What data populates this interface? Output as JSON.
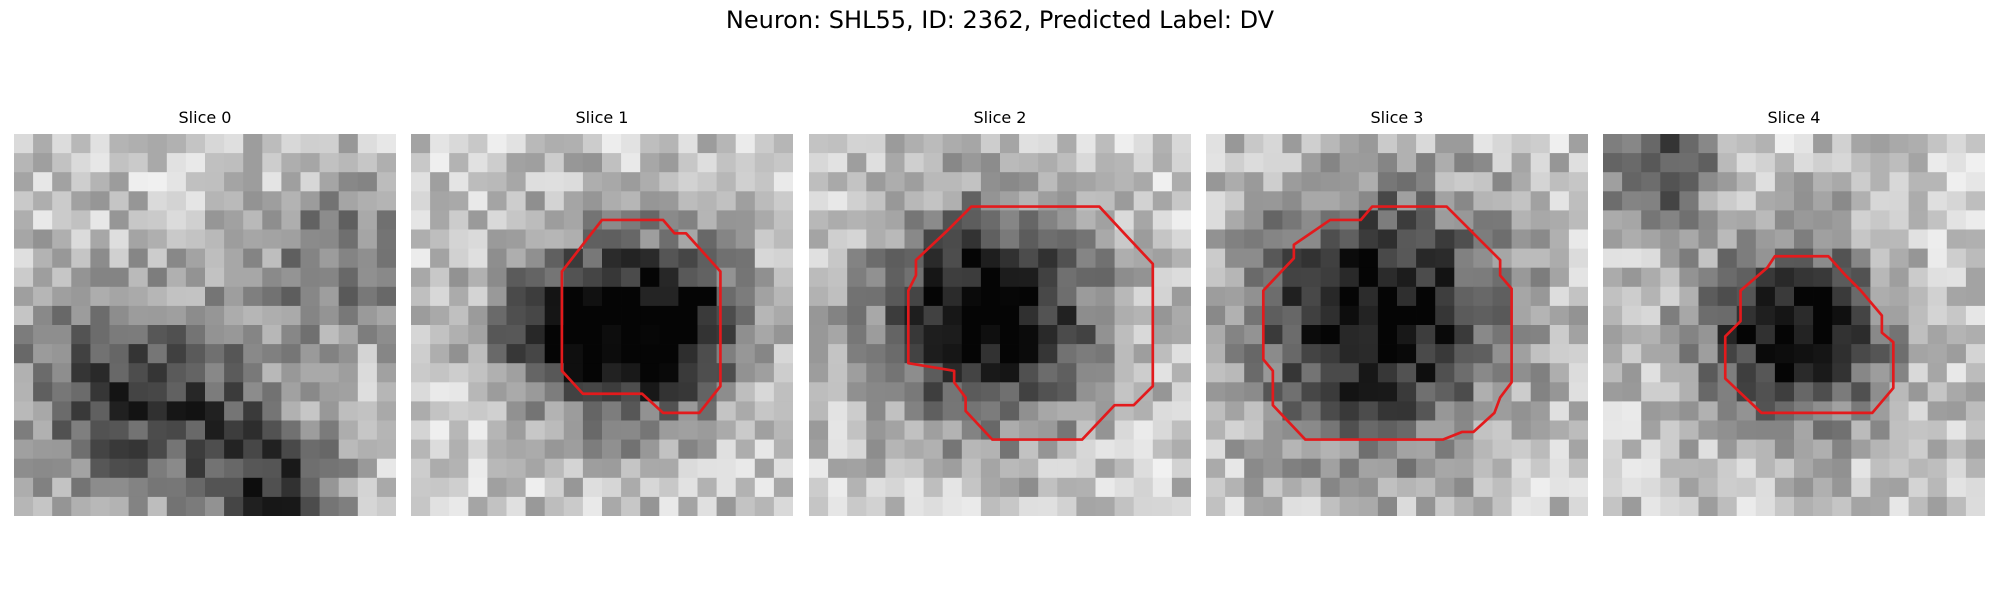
{
  "figure": {
    "title": "Neuron: SHL55, ID: 2362, Predicted Label: DV"
  },
  "panels": [
    {
      "title": "Slice 0",
      "outline": null,
      "blobs": [
        [
          5,
          13,
          4,
          0.45
        ],
        [
          14,
          19,
          2.5,
          0.55
        ],
        [
          17,
          7,
          3,
          0.35
        ],
        [
          10,
          15,
          3,
          0.3
        ]
      ]
    },
    {
      "title": "Slice 1",
      "outline": [
        [
          12.0,
          4.5
        ],
        [
          13.2,
          4.5
        ],
        [
          13.8,
          5.2
        ],
        [
          14.4,
          5.2
        ],
        [
          16.2,
          7.2
        ],
        [
          16.2,
          13.2
        ],
        [
          15.1,
          14.6
        ],
        [
          13.2,
          14.6
        ],
        [
          12.1,
          13.6
        ],
        [
          9.0,
          13.6
        ],
        [
          7.9,
          12.4
        ],
        [
          7.9,
          7.2
        ],
        [
          10.0,
          4.5
        ]
      ],
      "blobs": [
        [
          11.8,
          10.2,
          3.6,
          0.75
        ],
        [
          7.5,
          10.2,
          2.2,
          0.45
        ],
        [
          15,
          9.5,
          2,
          0.3
        ]
      ]
    },
    {
      "title": "Slice 2",
      "outline": [
        [
          12.5,
          3.8
        ],
        [
          15.2,
          3.8
        ],
        [
          16.5,
          5.2
        ],
        [
          16.5,
          5.2
        ],
        [
          18.0,
          6.8
        ],
        [
          18.0,
          13.2
        ],
        [
          17.0,
          14.2
        ],
        [
          16.0,
          14.2
        ],
        [
          14.3,
          16.0
        ],
        [
          13.6,
          16.0
        ],
        [
          12.5,
          16.0
        ],
        [
          9.6,
          16.0
        ],
        [
          8.2,
          14.5
        ],
        [
          8.2,
          13.8
        ],
        [
          7.6,
          13.0
        ],
        [
          7.6,
          12.4
        ],
        [
          5.2,
          12.0
        ],
        [
          5.2,
          8.2
        ],
        [
          5.6,
          7.4
        ],
        [
          5.6,
          6.6
        ],
        [
          7.2,
          5.1
        ],
        [
          8.5,
          3.8
        ]
      ],
      "blobs": [
        [
          9.4,
          9.6,
          3.9,
          0.85
        ]
      ]
    },
    {
      "title": "Slice 3",
      "outline": [
        [
          8.7,
          3.8
        ],
        [
          12.6,
          3.8
        ],
        [
          14.6,
          5.8
        ],
        [
          15.4,
          6.6
        ],
        [
          15.4,
          7.4
        ],
        [
          16.0,
          8.1
        ],
        [
          16.0,
          13.0
        ],
        [
          15.4,
          13.8
        ],
        [
          15.1,
          14.6
        ],
        [
          14.0,
          15.6
        ],
        [
          13.4,
          15.6
        ],
        [
          12.4,
          16.0
        ],
        [
          5.2,
          16.0
        ],
        [
          3.5,
          14.2
        ],
        [
          3.5,
          13.2
        ],
        [
          3.5,
          12.4
        ],
        [
          3.0,
          11.8
        ],
        [
          3.0,
          9.0
        ],
        [
          3.0,
          8.2
        ],
        [
          4.6,
          6.5
        ],
        [
          4.6,
          5.8
        ],
        [
          6.5,
          4.5
        ],
        [
          8.1,
          4.5
        ]
      ],
      "blobs": [
        [
          8.9,
          9.6,
          4.6,
          0.8
        ]
      ]
    },
    {
      "title": "Slice 4",
      "outline": [
        [
          9.8,
          6.4
        ],
        [
          11.8,
          6.4
        ],
        [
          12.7,
          7.4
        ],
        [
          13.5,
          8.2
        ],
        [
          14.6,
          9.5
        ],
        [
          14.6,
          10.4
        ],
        [
          15.2,
          10.9
        ],
        [
          15.2,
          13.3
        ],
        [
          14.1,
          14.6
        ],
        [
          8.3,
          14.6
        ],
        [
          6.4,
          12.8
        ],
        [
          6.4,
          10.6
        ],
        [
          7.2,
          9.8
        ],
        [
          7.2,
          9.0
        ],
        [
          7.2,
          8.2
        ],
        [
          8.6,
          7.0
        ],
        [
          9.0,
          6.4
        ]
      ],
      "blobs": [
        [
          10.0,
          10.4,
          3.3,
          0.82
        ],
        [
          3,
          2,
          2,
          0.55
        ]
      ]
    }
  ],
  "colors": {
    "outline": "#e31a1c",
    "text": "#000000",
    "background": "#ffffff"
  }
}
